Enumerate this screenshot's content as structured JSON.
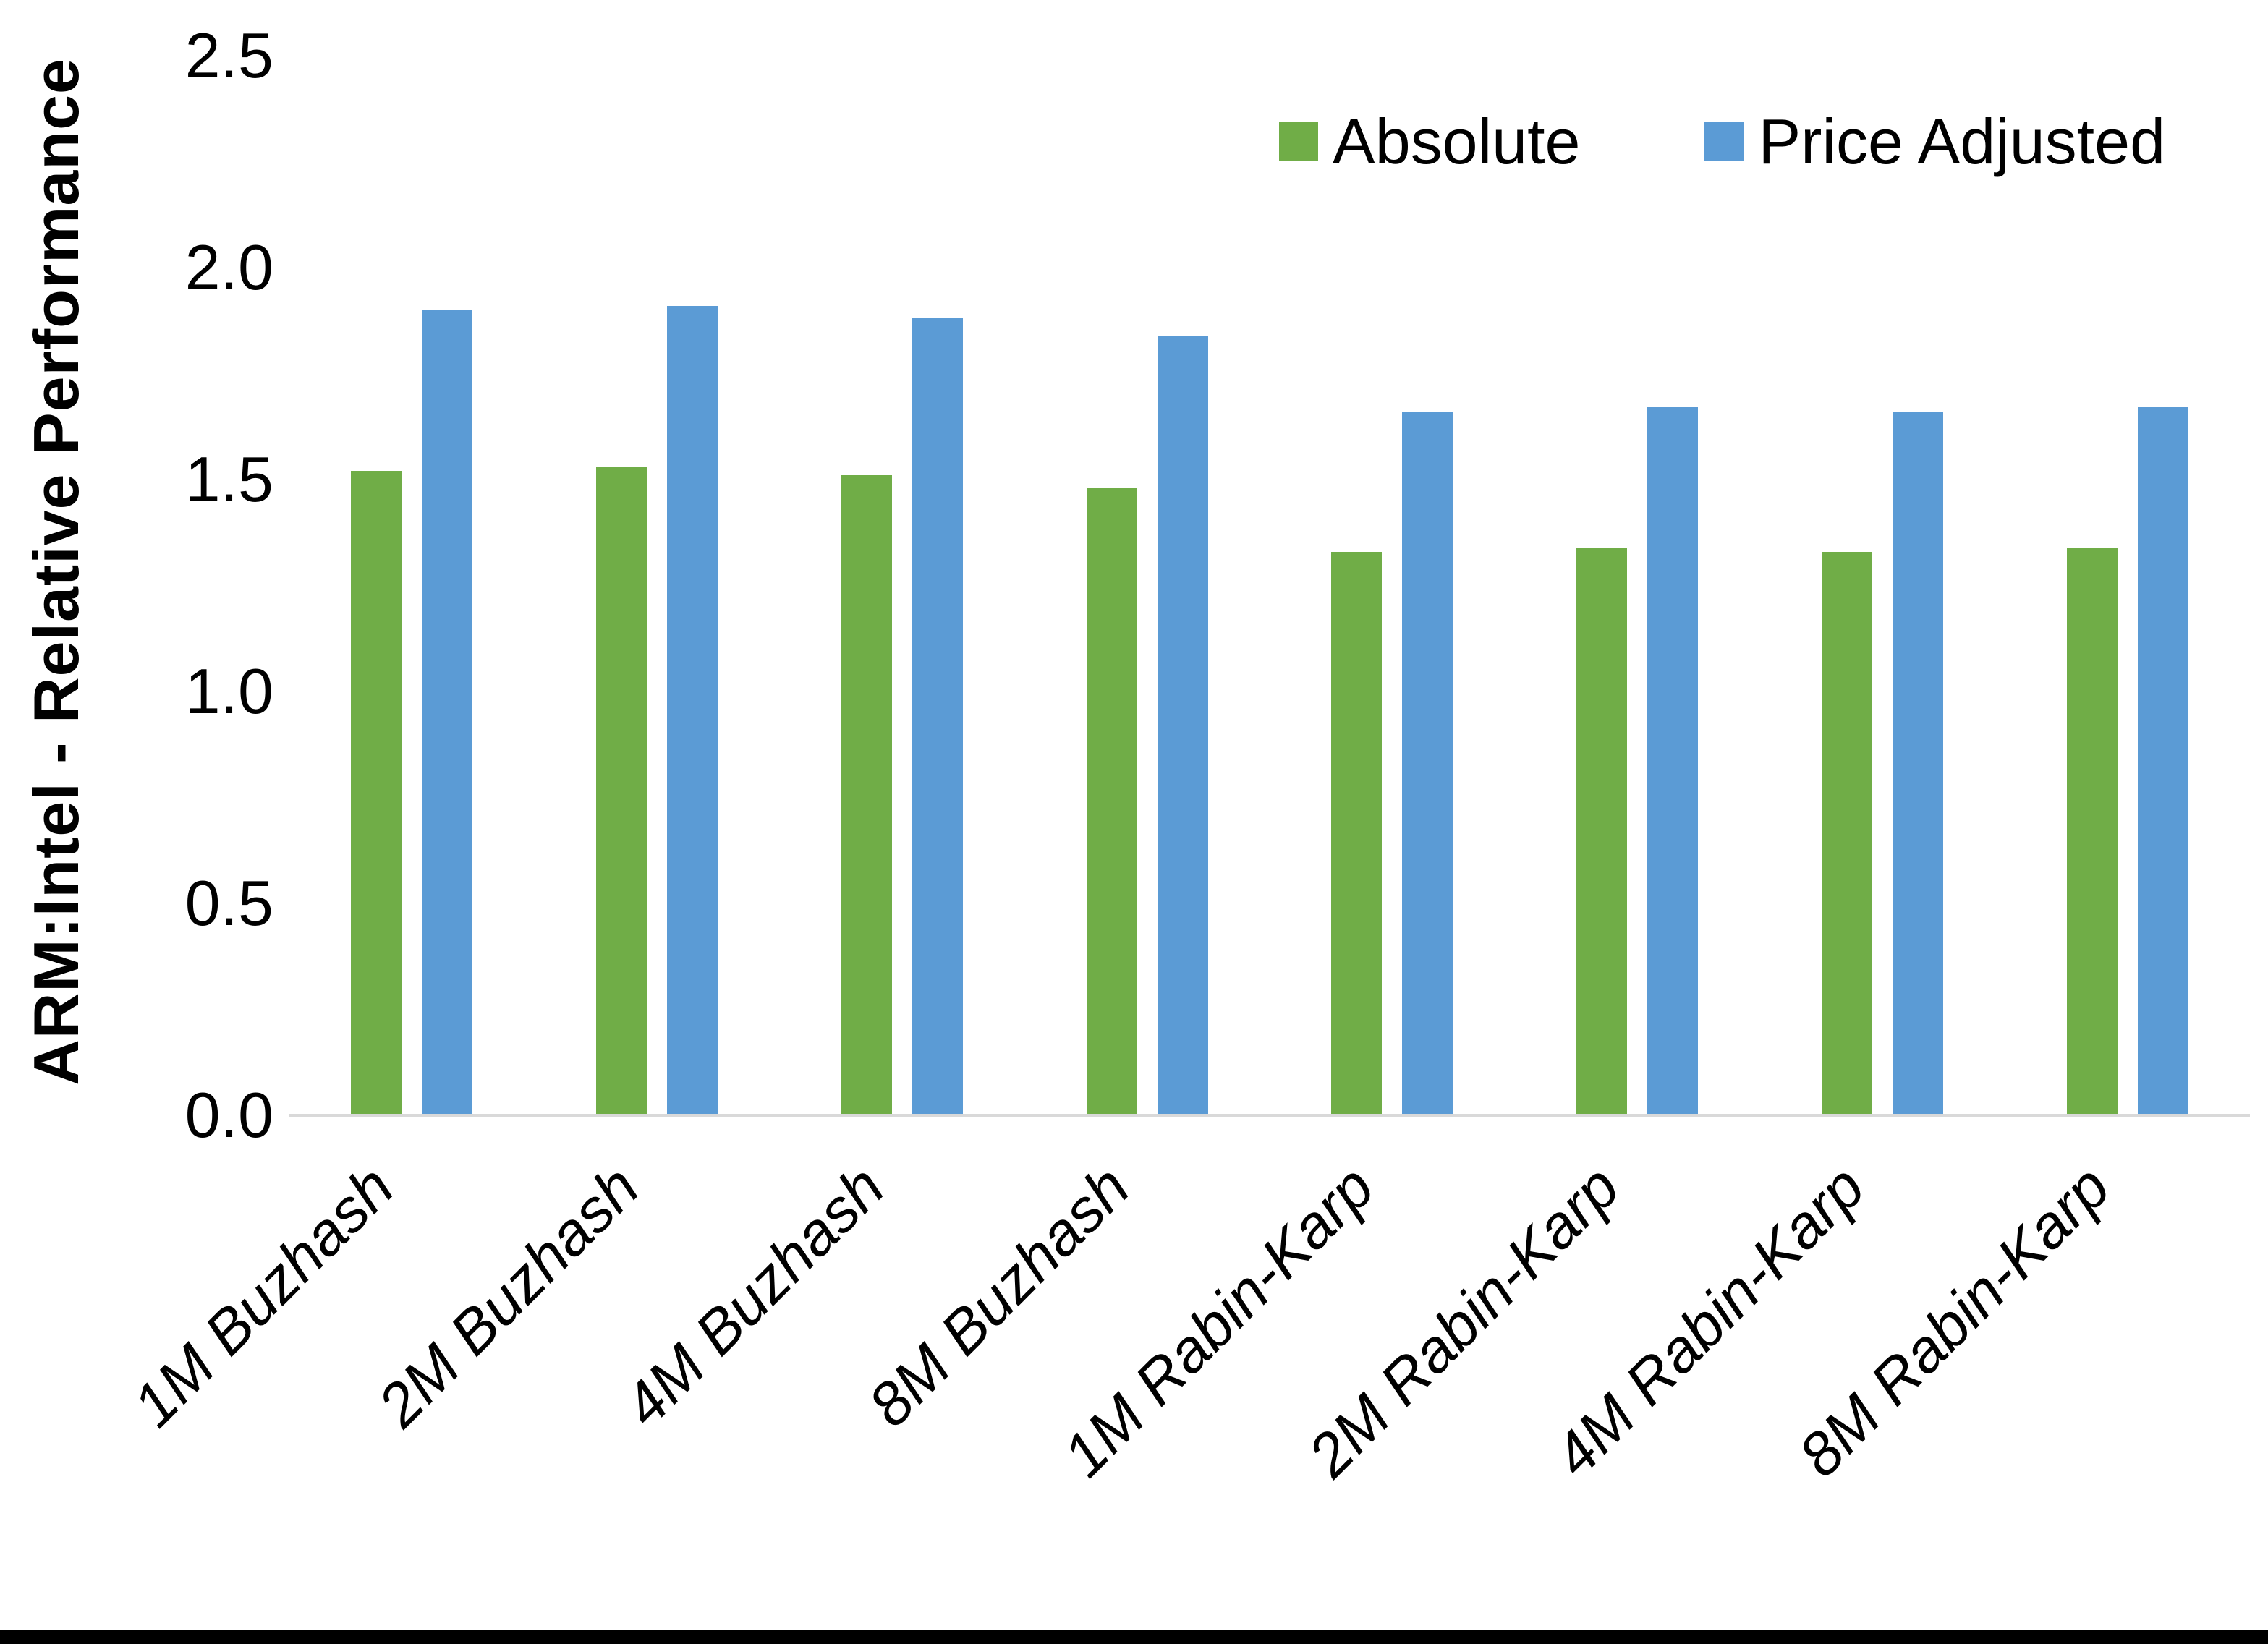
{
  "chart_data": {
    "type": "bar",
    "title": "",
    "xlabel": "",
    "ylabel": "ARM:Intel - Relative Performance",
    "ylim": [
      0,
      2.5
    ],
    "yticks": [
      0,
      0.5,
      1,
      1.5,
      2,
      2.5
    ],
    "ytick_labels": [
      "0.0",
      "0.5",
      "1.0",
      "1.5",
      "2.0",
      "2.5"
    ],
    "grid": false,
    "legend_position": "top-right",
    "categories": [
      "1M Buzhash",
      "2M Buzhash",
      "4M Buzhash",
      "8M Buzhash",
      "1M Rabin-Karp",
      "2M Rabin-Karp",
      "4M Rabin-Karp",
      "8M Rabin-Karp"
    ],
    "series": [
      {
        "name": "Absolute",
        "color": "#70AD47",
        "values": [
          1.52,
          1.53,
          1.51,
          1.48,
          1.33,
          1.34,
          1.33,
          1.34
        ]
      },
      {
        "name": "Price Adjusted",
        "color": "#5B9BD5",
        "values": [
          1.9,
          1.91,
          1.88,
          1.84,
          1.66,
          1.67,
          1.66,
          1.67
        ]
      }
    ]
  },
  "colors": {
    "background": "#FFFFFF",
    "axis_line": "#D9D9D9",
    "text": "#000000",
    "bottom_border": "#000000"
  }
}
